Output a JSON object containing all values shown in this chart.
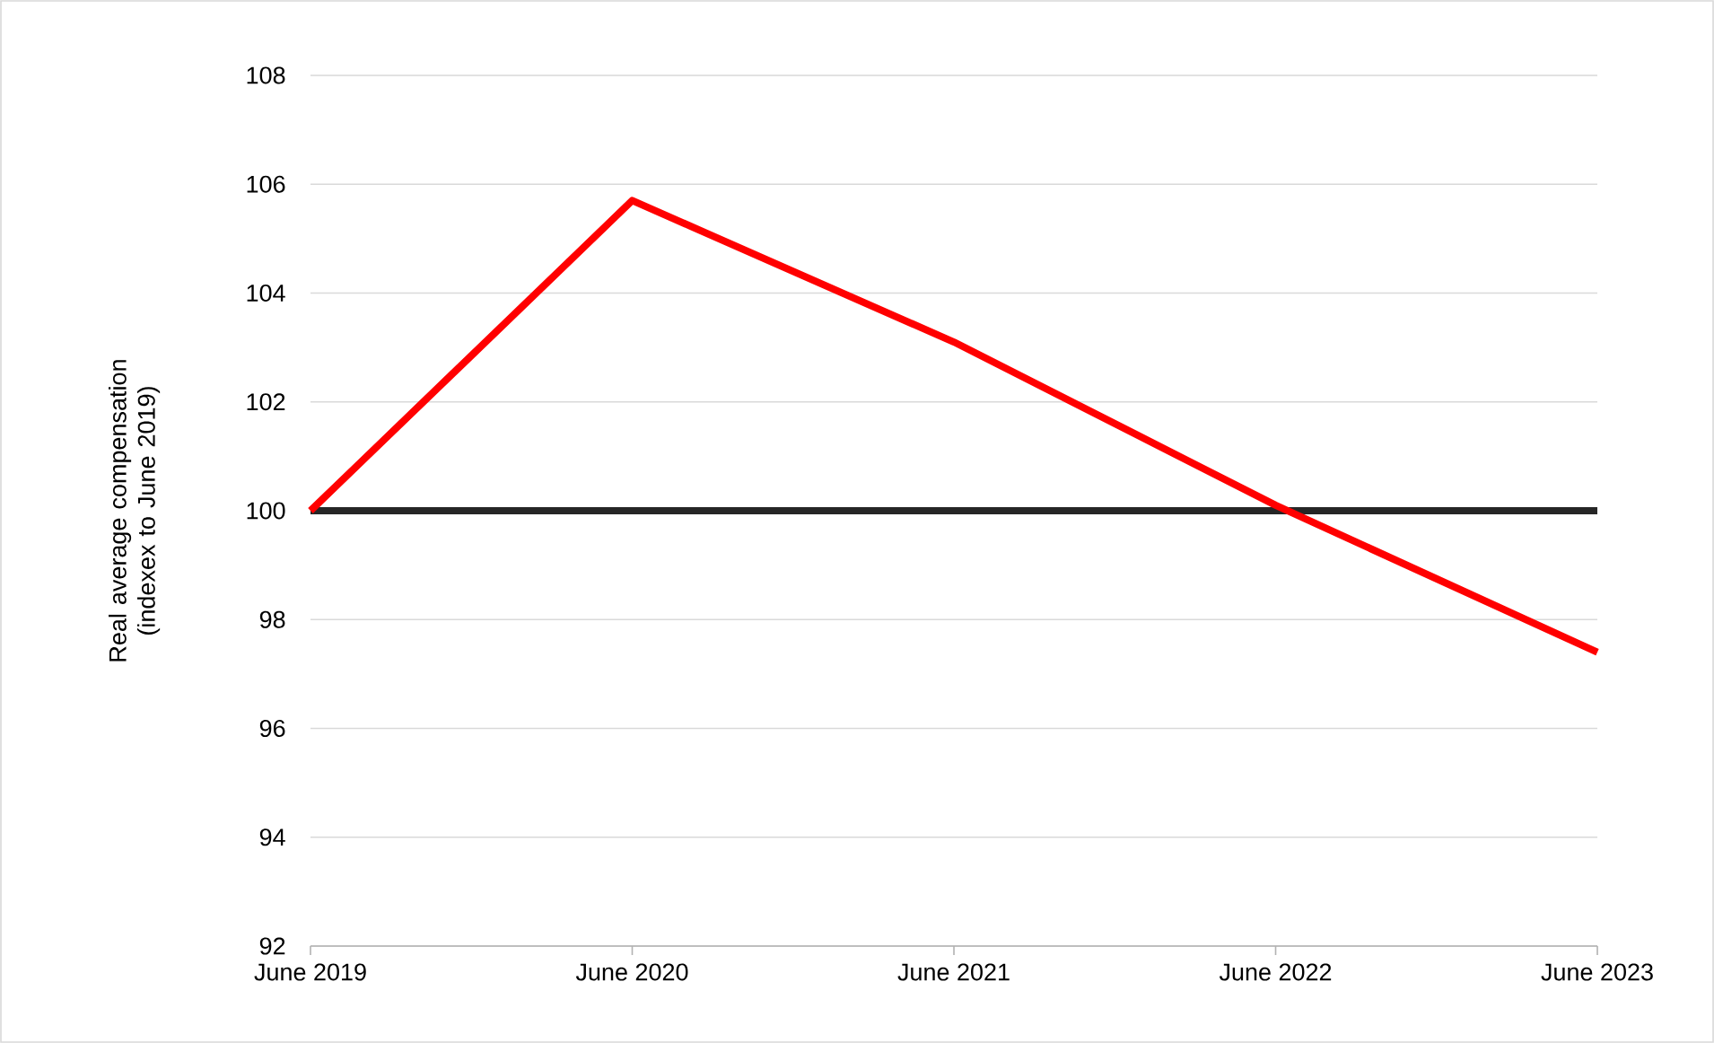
{
  "chart_data": {
    "type": "line",
    "ylabel": "Real average compensation (indexex to June 2019)",
    "categories": [
      "June 2019",
      "June 2020",
      "June 2021",
      "June 2022",
      "June 2023"
    ],
    "series": [
      {
        "color": "#ff0000",
        "values": [
          100,
          105.7,
          103.1,
          100.1,
          97.4
        ]
      }
    ],
    "ylim": [
      92,
      108
    ],
    "yticks": [
      92,
      94,
      96,
      98,
      100,
      102,
      104,
      106,
      108
    ],
    "ref_lines": [
      {
        "axis": "y",
        "value": 100,
        "color": "#262626"
      }
    ],
    "grid": "y",
    "marker": "none",
    "line_style": "solid"
  }
}
